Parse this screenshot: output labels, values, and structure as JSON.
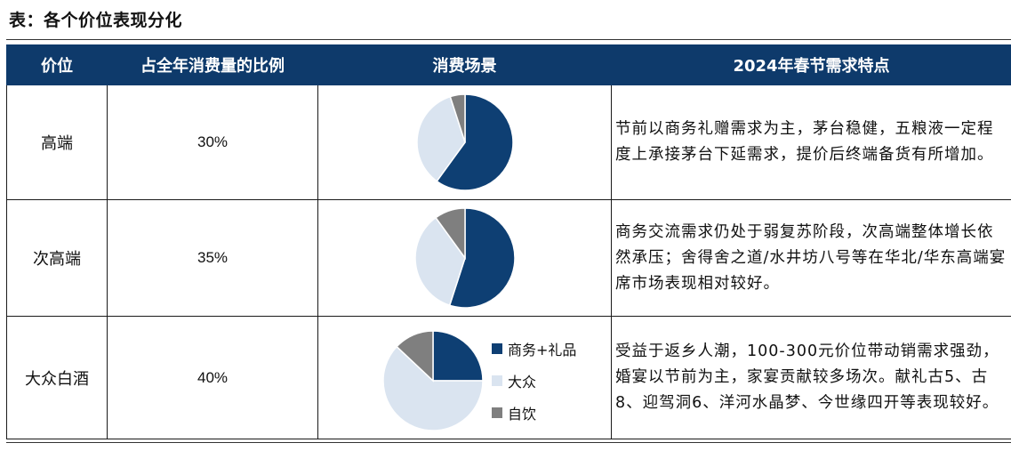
{
  "title": "表：各个价位表现分化",
  "headers": [
    "价位",
    "占全年消费量的比例",
    "消费场景",
    "2024年春节需求特点"
  ],
  "legend": [
    {
      "name": "商务+礼品",
      "color": "#0e3f73"
    },
    {
      "name": "大众",
      "color": "#dae4f0"
    },
    {
      "name": "自饮",
      "color": "#7f7f7f"
    }
  ],
  "rows": [
    {
      "tier": "高端",
      "share": "30%",
      "desc": "节前以商务礼赠需求为主，茅台稳健，五粮液一定程度上承接茅台下延需求，提价后终端备货有所增加。"
    },
    {
      "tier": "次高端",
      "share": "35%",
      "desc": "商务交流需求仍处于弱复苏阶段，次高端整体增长依然承压；舍得舍之道/水井坊八号等在华北/华东高端宴席市场表现相对较好。"
    },
    {
      "tier": "大众白酒",
      "share": "40%",
      "desc": "受益于返乡人潮，100-300元价位带动销需求强劲，婚宴以节前为主，家宴贡献较多场次。献礼古5、古8、迎驾洞6、洋河水晶梦、今世缘四开等表现较好。"
    }
  ],
  "chart_data": [
    {
      "type": "pie",
      "categories": [
        "商务+礼品",
        "大众",
        "自饮"
      ],
      "values": [
        60,
        35,
        5
      ]
    },
    {
      "type": "pie",
      "categories": [
        "商务+礼品",
        "大众",
        "自饮"
      ],
      "values": [
        55,
        35,
        10
      ]
    },
    {
      "type": "pie",
      "categories": [
        "商务+礼品",
        "大众",
        "自饮"
      ],
      "values": [
        25,
        62,
        13
      ]
    }
  ]
}
